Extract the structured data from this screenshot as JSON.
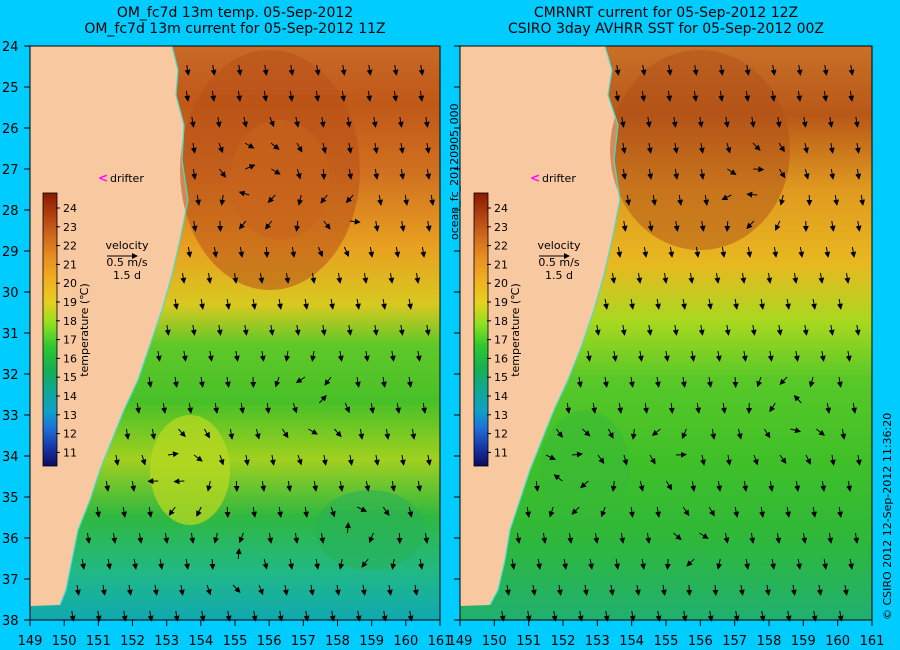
{
  "panels": [
    {
      "title_line1": "OM_fc7d 13m temp. 05-Sep-2012",
      "title_line2": "OM_fc7d 13m current for 05-Sep-2012 11Z",
      "drifter_label": "drifter",
      "velocity_label": "velocity",
      "velocity_scale": "0.5 m/s",
      "velocity_days": "1.5 d"
    },
    {
      "title_line1": "CMRNRT current for 05-Sep-2012 12Z",
      "title_line2": "CSIRO 3day AVHRR SST for 05-Sep-2012 00Z",
      "drifter_label": "drifter",
      "velocity_label": "velocity",
      "velocity_scale": "0.5 m/s",
      "velocity_days": "1.5 d"
    }
  ],
  "colorbar": {
    "label": "temperature (℃)",
    "ticks": [
      "24",
      "23",
      "22",
      "21",
      "20",
      "19",
      "18",
      "17",
      "16",
      "15",
      "14",
      "13",
      "12",
      "11"
    ],
    "colors": [
      "#8b1a00",
      "#b04010",
      "#c8661a",
      "#e08a20",
      "#f0ae20",
      "#e8cc20",
      "#a8e020",
      "#3cc828",
      "#20b040",
      "#10a878",
      "#10a0b8",
      "#1e70d0",
      "#1e40b0",
      "#101c80",
      "#0a0a60"
    ]
  },
  "axes": {
    "lat_labels": [
      "24",
      "25",
      "26",
      "27",
      "28",
      "29",
      "30",
      "31",
      "32",
      "33",
      "34",
      "35",
      "36",
      "37",
      "38"
    ],
    "lon_labels": [
      "149",
      "150",
      "151",
      "152",
      "153",
      "154",
      "155",
      "156",
      "157",
      "158",
      "159",
      "160",
      "161"
    ]
  },
  "side_labels": {
    "run_id": "ocean_fc_20120905_000",
    "credit": "© CSIRO 2012   12-Sep-2012 11:36:20"
  },
  "colors": {
    "background": "#00ccff",
    "land": "#f8c8a0",
    "coast": "#40e0d0",
    "drifter_marker": "#ff00ff",
    "arrows": "#000000"
  }
}
